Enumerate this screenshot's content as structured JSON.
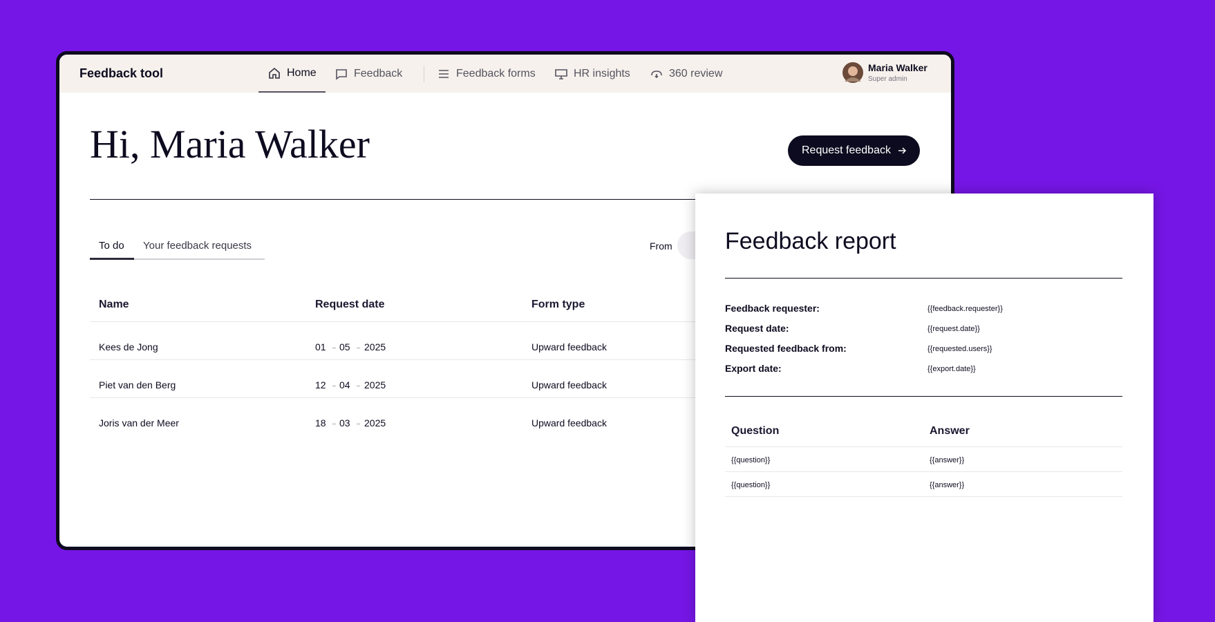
{
  "app": {
    "name": "Feedback tool",
    "nav": [
      "Home",
      "Feedback",
      "Feedback forms",
      "HR insights",
      "360 review"
    ],
    "user": {
      "name": "Maria Walker",
      "role": "Super admin"
    }
  },
  "greeting": "Hi, Maria Walker",
  "button": "Request feedback",
  "tabs": [
    "To do",
    "Your feedback requests"
  ],
  "filter_label": "From",
  "table": {
    "columns": [
      "Name",
      "Request date",
      "Form type"
    ],
    "rows": [
      [
        "Kees de Jong",
        [
          "01",
          "05",
          "2025"
        ],
        "Upward feedback"
      ],
      [
        "Piet van den Berg",
        [
          "12",
          "04",
          "2025"
        ],
        "Upward feedback"
      ],
      [
        "Joris van der Meer",
        [
          "18",
          "03",
          "2025"
        ],
        "Upward feedback"
      ]
    ]
  },
  "report": {
    "title": "Feedback report",
    "meta": [
      [
        "Feedback requester:",
        "{{feedback.requester}}"
      ],
      [
        "Request date:",
        "{{request.date}}"
      ],
      [
        "Requested feedback from:",
        "{{requested.users}}"
      ],
      [
        "Export date:",
        "{{export.date}}"
      ]
    ],
    "columns": [
      "Question",
      "Answer"
    ],
    "rows": [
      [
        "{{question}}",
        "{{answer}}"
      ],
      [
        "{{question}}",
        "{{answer}}"
      ]
    ]
  }
}
